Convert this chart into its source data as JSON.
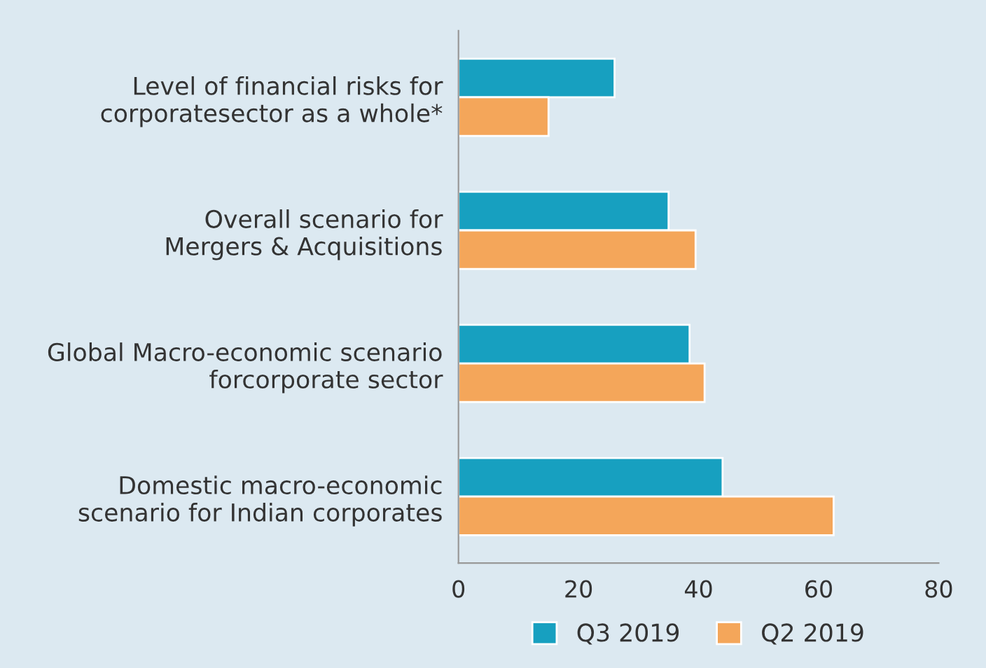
{
  "chart_data": {
    "type": "bar",
    "orientation": "horizontal",
    "categories": [
      "Level of financial risks for\ncorporatesector as a whole*",
      "Overall scenario for\nMergers & Acquisitions",
      "Global Macro-economic scenario\nforcorporate sector",
      "Domestic macro-economic\nscenario for Indian corporates"
    ],
    "series": [
      {
        "name": "Q3 2019",
        "color": "#17a0c0",
        "values": [
          26,
          35,
          38.5,
          44
        ]
      },
      {
        "name": "Q2 2019",
        "color": "#f4a65a",
        "values": [
          15,
          39.5,
          41,
          62.5
        ]
      }
    ],
    "xlim": [
      0,
      80
    ],
    "xticks": [
      0,
      20,
      40,
      60,
      80
    ],
    "grid": false,
    "legend": "bottom"
  }
}
